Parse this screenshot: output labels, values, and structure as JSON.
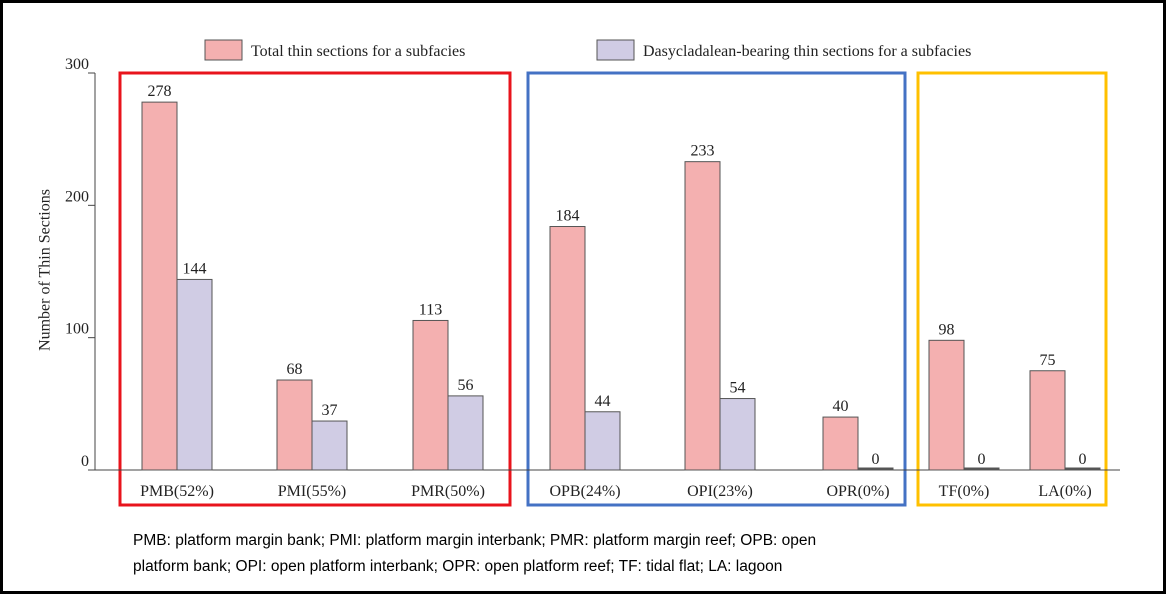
{
  "chart_data": {
    "type": "bar",
    "y_label": "Number of Thin Sections",
    "categories": [
      "PMB(52%)",
      "PMI(55%)",
      "PMR(50%)",
      "OPB(24%)",
      "OPI(23%)",
      "OPR(0%)",
      "TF(0%)",
      "LA(0%)"
    ],
    "series": [
      {
        "name": "Total thin sections for a  subfacies",
        "color": "#f4b0b0",
        "values": [
          278,
          68,
          113,
          184,
          233,
          40,
          98,
          75
        ]
      },
      {
        "name": "Dasycladalean-bearing thin sections for a subfacies",
        "color": "#d0cce4",
        "values": [
          144,
          37,
          56,
          44,
          54,
          0,
          0,
          0
        ]
      }
    ],
    "ylim": [
      0,
      300
    ],
    "yticks": [
      0,
      100,
      200,
      300
    ],
    "footnote": [
      "PMB: platform margin bank;  PMI: platform margin interbank;  PMR: platform margin reef; OPB: open",
      "platform bank;  OPI: open platform interbank;  OPR: open platform reef;  TF: tidal flat;  LA: lagoon"
    ]
  }
}
